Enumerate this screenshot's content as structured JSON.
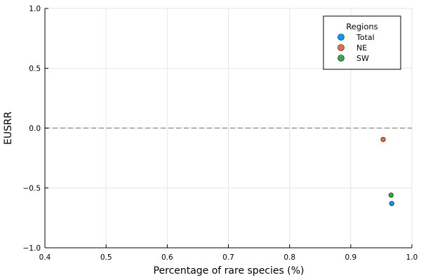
{
  "chart_data": {
    "type": "scatter",
    "title": "",
    "xlabel": "Percentage of rare species (%)",
    "ylabel": "EUSRR",
    "xlim": [
      0.4,
      1.0
    ],
    "ylim": [
      -1.0,
      1.0
    ],
    "xticks": [
      0.4,
      0.5,
      0.6,
      0.7,
      0.8,
      0.9,
      1.0
    ],
    "xtick_labels": [
      "0.4",
      "0.5",
      "0.6",
      "0.7",
      "0.8",
      "0.9",
      "1.0"
    ],
    "yticks": [
      -1.0,
      -0.5,
      0.0,
      0.5,
      1.0
    ],
    "ytick_labels": [
      "−1.0",
      "−0.5",
      "0.0",
      "0.5",
      "1.0"
    ],
    "grid": true,
    "reference_line": {
      "y": 0.0,
      "style": "dashed",
      "color": "#999999"
    },
    "legend": {
      "title": "Regions",
      "position": "top-right"
    },
    "series": [
      {
        "name": "Total",
        "color": "#009AFA",
        "points": [
          {
            "x": 0.967,
            "y": -0.63
          }
        ]
      },
      {
        "name": "NE",
        "color": "#E36F47",
        "points": [
          {
            "x": 0.953,
            "y": -0.095
          }
        ]
      },
      {
        "name": "SW",
        "color": "#3EA44E",
        "points": [
          {
            "x": 0.966,
            "y": -0.56
          }
        ]
      }
    ]
  }
}
